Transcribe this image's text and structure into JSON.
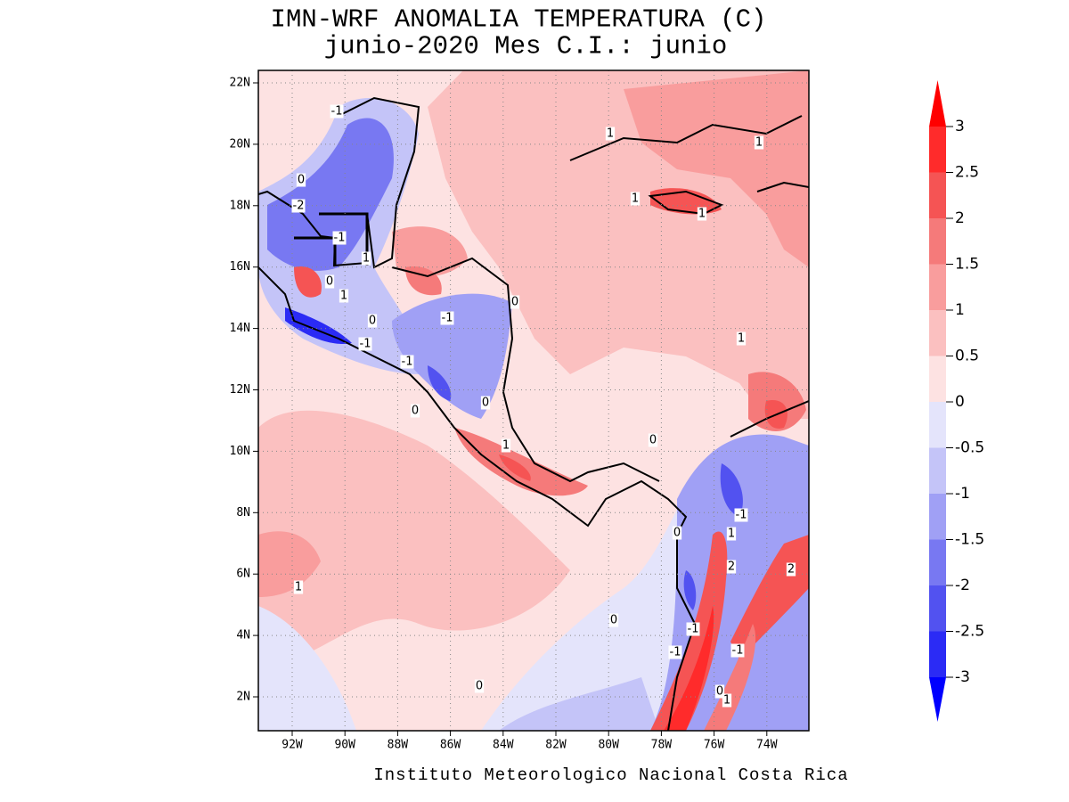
{
  "title": [
    "IMN-WRF  ANOMALIA TEMPERATURA (C)",
    "junio-2020 Mes C.I.: junio"
  ],
  "footer": "Instituto Meteorologico Nacional Costa Rica",
  "map": {
    "lon_ticks": [
      "92W",
      "90W",
      "88W",
      "86W",
      "84W",
      "82W",
      "80W",
      "78W",
      "76W",
      "74W"
    ],
    "lat_ticks": [
      "22N",
      "20N",
      "18N",
      "16N",
      "14N",
      "12N",
      "10N",
      "8N",
      "6N",
      "4N",
      "2N"
    ]
  },
  "colorbar": {
    "levels": [
      3,
      2.5,
      2,
      1.5,
      1,
      0.5,
      0,
      -0.5,
      -1,
      -1.5,
      -2,
      -2.5,
      -3
    ],
    "colors": [
      "#ff0000",
      "#ff2b2b",
      "#f55454",
      "#f57a7a",
      "#f99d9d",
      "#fbc0c0",
      "#fde2e2",
      "#e4e4fb",
      "#c4c4f8",
      "#a0a0f5",
      "#7878f2",
      "#5252f0",
      "#2b2bf5",
      "#0000ff"
    ]
  },
  "contour_labels": [
    "-1",
    "1",
    "1",
    "0",
    "1",
    "1",
    "-2",
    "-1",
    "1",
    "0",
    "1",
    "0",
    "-1",
    "0",
    "-1",
    "-1",
    "1",
    "0",
    "0",
    "1",
    "0",
    "-1",
    "1",
    "0",
    "2",
    "2",
    "1",
    "0",
    "-1",
    "-1",
    "-1",
    "0",
    "0",
    "1"
  ]
}
